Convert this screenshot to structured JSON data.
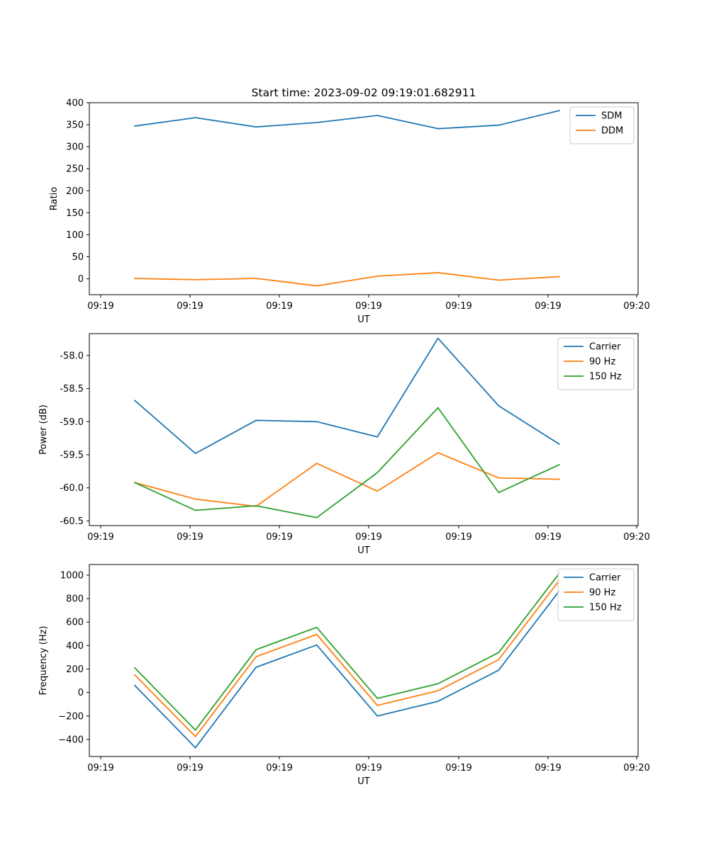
{
  "chart_data": [
    {
      "type": "line",
      "title": "Start time: 2023-09-02 09:19:01.682911",
      "xlabel": "UT",
      "ylabel": "Ratio",
      "x_ticks": [
        "09:19",
        "09:19",
        "09:19",
        "09:19",
        "09:19",
        "09:19",
        "09:20"
      ],
      "x": [
        1,
        2,
        3,
        4,
        5,
        6,
        7,
        8
      ],
      "xlim": [
        0.25,
        9.3
      ],
      "ylim": [
        -36,
        400
      ],
      "y_ticks": [
        0,
        50,
        100,
        150,
        200,
        250,
        300,
        350,
        400
      ],
      "legend": "top-right",
      "series": [
        {
          "name": "SDM",
          "color": "#1f77b4",
          "values": [
            347,
            366,
            345,
            355,
            371,
            341,
            349,
            382
          ]
        },
        {
          "name": "DDM",
          "color": "#ff7f0e",
          "values": [
            1,
            -2,
            1,
            -16,
            6,
            14,
            -3,
            5
          ]
        }
      ]
    },
    {
      "type": "line",
      "xlabel": "UT",
      "ylabel": "Power (dB)",
      "x_ticks": [
        "09:19",
        "09:19",
        "09:19",
        "09:19",
        "09:19",
        "09:19",
        "09:20"
      ],
      "x": [
        1,
        2,
        3,
        4,
        5,
        6,
        7,
        8
      ],
      "xlim": [
        0.25,
        9.3
      ],
      "ylim": [
        -60.57,
        -57.67
      ],
      "y_ticks": [
        "-60.5",
        "-60.0",
        "-59.5",
        "-59.0",
        "-58.5",
        "-58.0"
      ],
      "y_tick_values": [
        -60.5,
        -60.0,
        -59.5,
        -59.0,
        -58.5,
        -58.0
      ],
      "legend": "top-right",
      "series": [
        {
          "name": "Carrier",
          "color": "#1f77b4",
          "values": [
            -58.68,
            -59.48,
            -58.98,
            -59.0,
            -59.23,
            -57.74,
            -58.76,
            -59.34
          ]
        },
        {
          "name": "90 Hz",
          "color": "#ff7f0e",
          "values": [
            -59.92,
            -60.17,
            -60.28,
            -59.63,
            -60.05,
            -59.47,
            -59.85,
            -59.87
          ]
        },
        {
          "name": "150 Hz",
          "color": "#2ca02c",
          "values": [
            -59.92,
            -60.34,
            -60.27,
            -60.45,
            -59.77,
            -58.79,
            -60.07,
            -59.65
          ]
        }
      ]
    },
    {
      "type": "line",
      "xlabel": "UT",
      "ylabel": "Frequency (Hz)",
      "x_ticks": [
        "09:19",
        "09:19",
        "09:19",
        "09:19",
        "09:19",
        "09:19",
        "09:20"
      ],
      "x": [
        1,
        2,
        3,
        4,
        5,
        6,
        7,
        8
      ],
      "xlim": [
        0.25,
        9.3
      ],
      "ylim": [
        -545,
        1090
      ],
      "y_ticks": [
        "−400",
        "−200",
        "0",
        "200",
        "400",
        "600",
        "800",
        "1000"
      ],
      "y_tick_values": [
        -400,
        -200,
        0,
        200,
        400,
        600,
        800,
        1000
      ],
      "legend": "top-right",
      "series": [
        {
          "name": "Carrier",
          "color": "#1f77b4",
          "values": [
            60,
            -470,
            215,
            405,
            -200,
            -75,
            190,
            865
          ]
        },
        {
          "name": "90 Hz",
          "color": "#ff7f0e",
          "values": [
            150,
            -375,
            305,
            495,
            -110,
            15,
            280,
            955
          ]
        },
        {
          "name": "150 Hz",
          "color": "#2ca02c",
          "values": [
            210,
            -320,
            365,
            555,
            -50,
            75,
            340,
            1015
          ]
        }
      ]
    }
  ]
}
